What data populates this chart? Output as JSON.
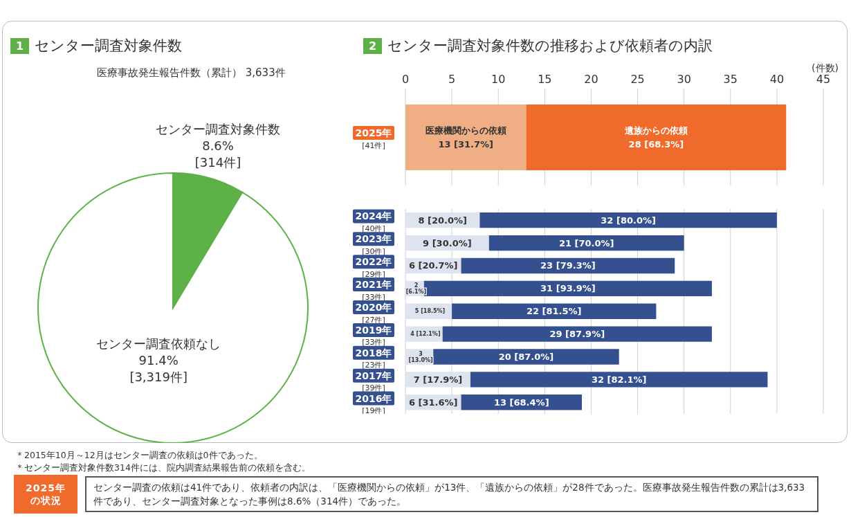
{
  "chart_data": [
    {
      "type": "pie",
      "title": "1 センター調査対象件数",
      "subtitle": "医療事故発生報告件数（累計） 3,633件",
      "categories": [
        "センター調査対象件数",
        "センター調査依頼なし"
      ],
      "values": [
        8.6,
        91.4
      ],
      "colors": [
        "#5db146",
        "#ffffff"
      ],
      "value_labels": [
        "8.6%\n[314件]",
        "91.4%\n[3,319件]"
      ],
      "legend": false
    },
    {
      "type": "bar",
      "orientation": "horizontal",
      "stacked": true,
      "title": "2 センター調査対象件数の推移および依頼者の内訳",
      "xlabel": "(件数)",
      "categories": [
        "2025年\n[41件]"
      ],
      "xlim": [
        0,
        45
      ],
      "xticks": [
        0,
        5,
        10,
        15,
        20,
        25,
        30,
        35,
        40,
        45
      ],
      "grid": "x",
      "legend": false,
      "series": [
        {
          "name": "医療機関からの依頼",
          "color": "#f0ae84",
          "values": [
            13
          ],
          "value_labels": [
            "13 [31.7%]"
          ]
        },
        {
          "name": "遺族からの依頼",
          "color": "#f06a2b",
          "values": [
            28
          ],
          "value_labels": [
            "28 [68.3%]"
          ]
        }
      ]
    },
    {
      "type": "bar",
      "orientation": "horizontal",
      "stacked": true,
      "tick_labels": "y",
      "categories": [
        "2024年\n[40件]",
        "2023年\n[30件]",
        "2022年\n[29件]",
        "2021年\n[33件]",
        "2020年\n[27件]",
        "2019年\n[33件]",
        "2018年\n[23件]",
        "2017年\n[39件]",
        "2016年\n[19件]"
      ],
      "xlim": [
        0,
        45
      ],
      "xticks": [
        0,
        5,
        10,
        15,
        20,
        25,
        30,
        35,
        40,
        45
      ],
      "grid": "x",
      "legend": false,
      "series": [
        {
          "color": "#dde3ef",
          "values": [
            8,
            9,
            6,
            2,
            5,
            4,
            3,
            7,
            6
          ],
          "value_labels": [
            "8 [20.0%]",
            "9 [30.0%]",
            "6 [20.7%]",
            "2\n[6.1%]",
            "5 [18.5%]",
            "4 [12.1%]",
            "3\n[13.0%]",
            "7 [17.9%]",
            "6 [31.6%]"
          ]
        },
        {
          "color": "#34508f",
          "values": [
            32,
            21,
            23,
            31,
            22,
            29,
            20,
            32,
            13
          ],
          "value_labels": [
            "32 [80.0%]",
            "21 [70.0%]",
            "23 [79.3%]",
            "31 [93.9%]",
            "22 [81.5%]",
            "29 [87.9%]",
            "20 [87.0%]",
            "32 [82.1%]",
            "13 [68.4%]"
          ]
        }
      ],
      "annotations": [
        "＊2015年10月～12月はセンター調査の依頼は0件であった。",
        "＊センター調査対象件数314件には、院内調査結果報告前の依頼を含む。",
        "2025年の状況",
        "センター調査の依頼は41件であり、依頼者の内訳は、「医療機関からの依頼」が13件、「遺族からの依頼」が28件であった。医療事故発生報告件数の累計は3,633件であり、センター調査対象となった事例は8.6%（314件）であった。"
      ]
    }
  ]
}
